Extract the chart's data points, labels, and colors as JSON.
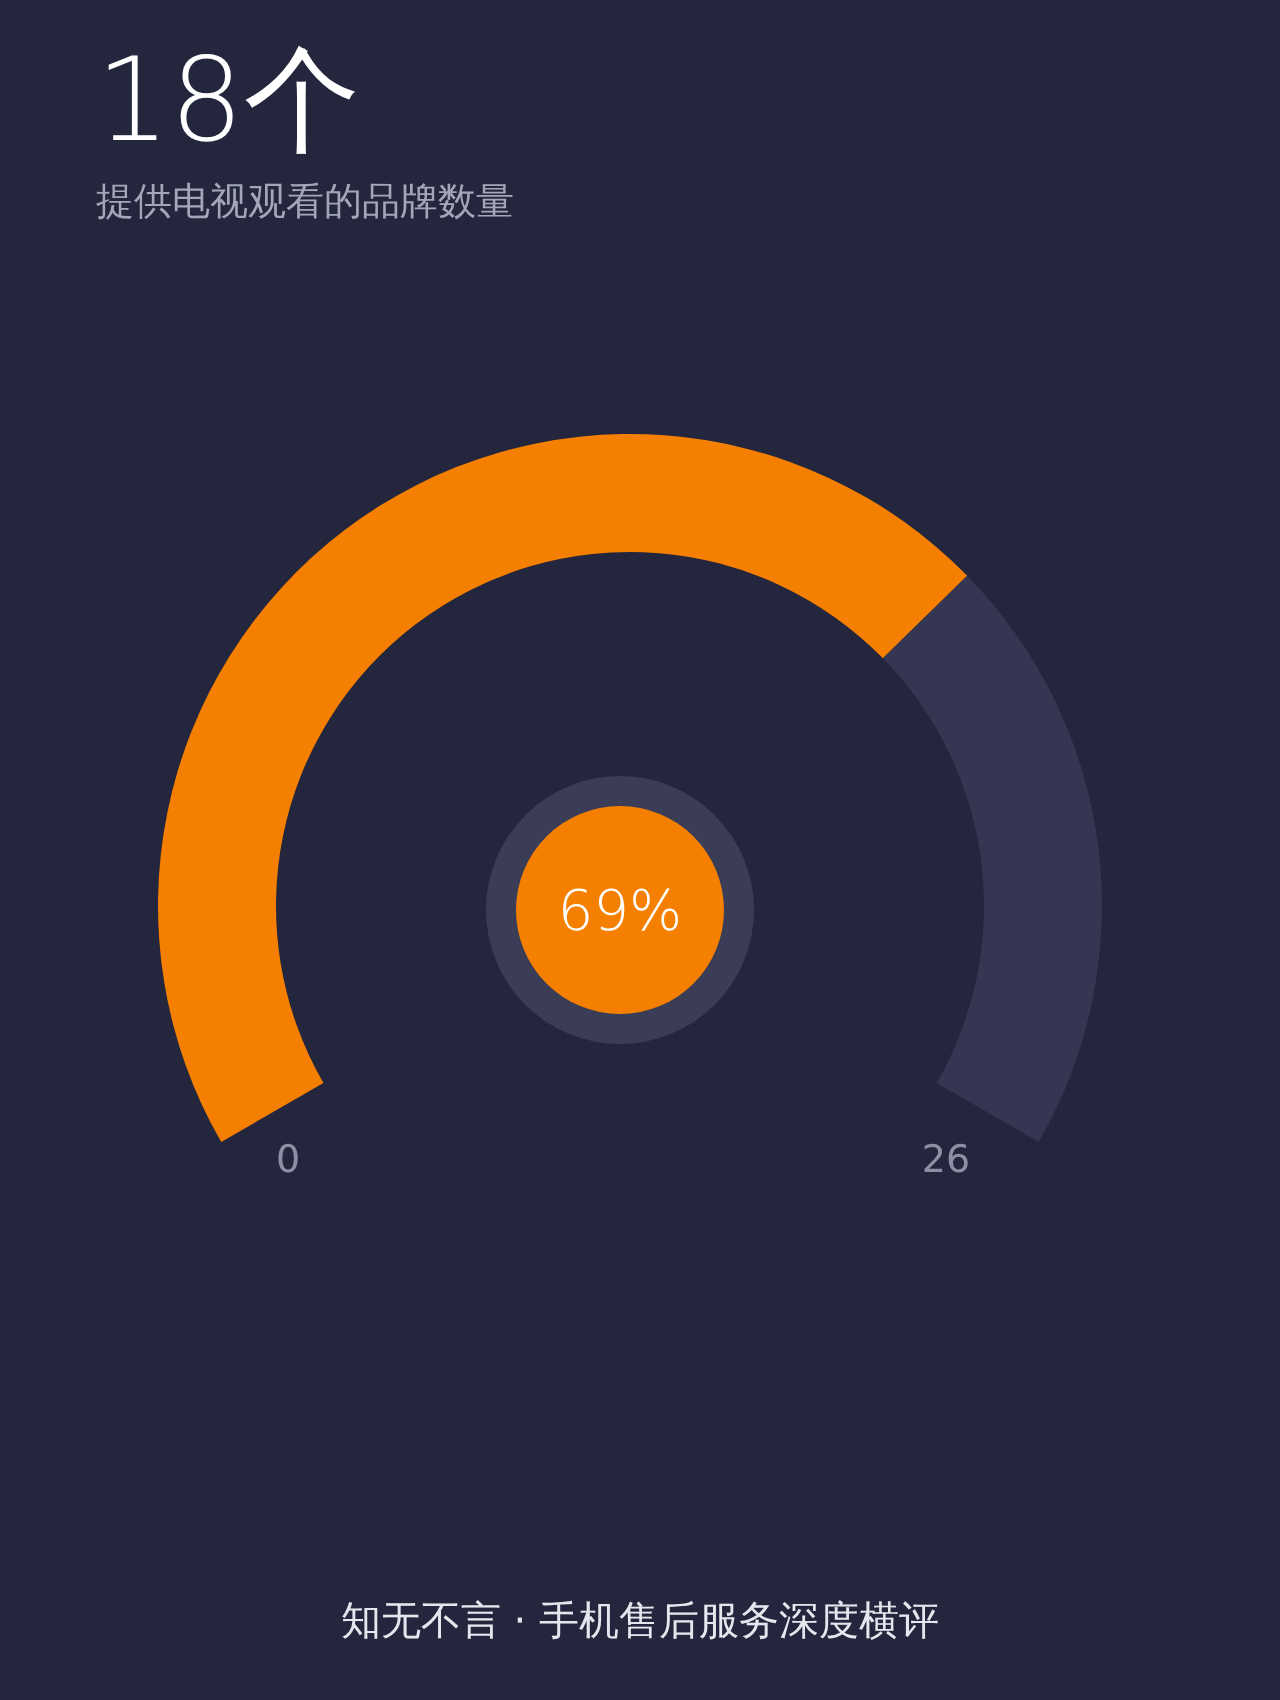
{
  "chart_data": {
    "type": "donut",
    "title": "18个",
    "subtitle": "提供电视观看的品牌数量",
    "categories": [
      null,
      null
    ],
    "values": [
      69,
      31
    ],
    "colors": [
      "#f57f00",
      "#343652"
    ],
    "annotations": [
      "69%",
      "0",
      "26",
      "知无不言 · 手机售后服务深度横评"
    ]
  }
}
